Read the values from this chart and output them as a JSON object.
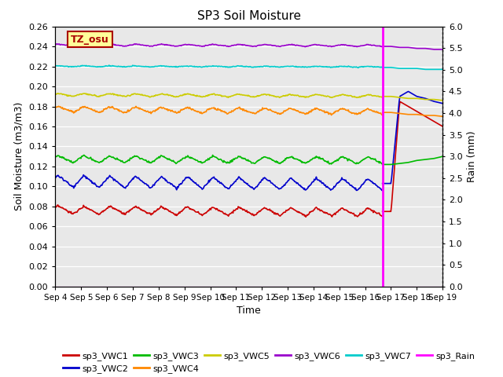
{
  "title": "SP3 Soil Moisture",
  "xlabel": "Time",
  "ylabel_left": "Soil Moisture (m3/m3)",
  "ylabel_right": "Rain (mm)",
  "ylim_left": [
    0.0,
    0.26
  ],
  "ylim_right": [
    0.0,
    6.0
  ],
  "yticks_left": [
    0.0,
    0.02,
    0.04,
    0.06,
    0.08,
    0.1,
    0.12,
    0.14,
    0.16,
    0.18,
    0.2,
    0.22,
    0.24,
    0.26
  ],
  "yticks_right": [
    0.0,
    0.5,
    1.0,
    1.5,
    2.0,
    2.5,
    3.0,
    3.5,
    4.0,
    4.5,
    5.0,
    5.5,
    6.0
  ],
  "xtick_labels": [
    "Sep 4",
    "Sep 5",
    "Sep 6",
    "Sep 7",
    "Sep 8",
    "Sep 9",
    "Sep 10",
    "Sep 11",
    "Sep 12",
    "Sep 13",
    "Sep 14",
    "Sep 15",
    "Sep 16",
    "Sep 17",
    "Sep 18",
    "Sep 19"
  ],
  "xtick_positions": [
    0,
    1,
    2,
    3,
    4,
    5,
    6,
    7,
    8,
    9,
    10,
    11,
    12,
    13,
    14,
    15
  ],
  "background_color": "#e8e8e8",
  "label_box_text": "TZ_osu",
  "label_box_color": "#ffff99",
  "label_box_edge": "#aa0000",
  "series_colors": {
    "VWC1": "#cc0000",
    "VWC2": "#0000cc",
    "VWC3": "#00bb00",
    "VWC4": "#ff8800",
    "VWC5": "#cccc00",
    "VWC6": "#9900cc",
    "VWC7": "#00cccc",
    "Rain": "#ff00ff"
  },
  "rain_event_x": 12.67,
  "n_days": 15,
  "n_days_main": 12.67
}
